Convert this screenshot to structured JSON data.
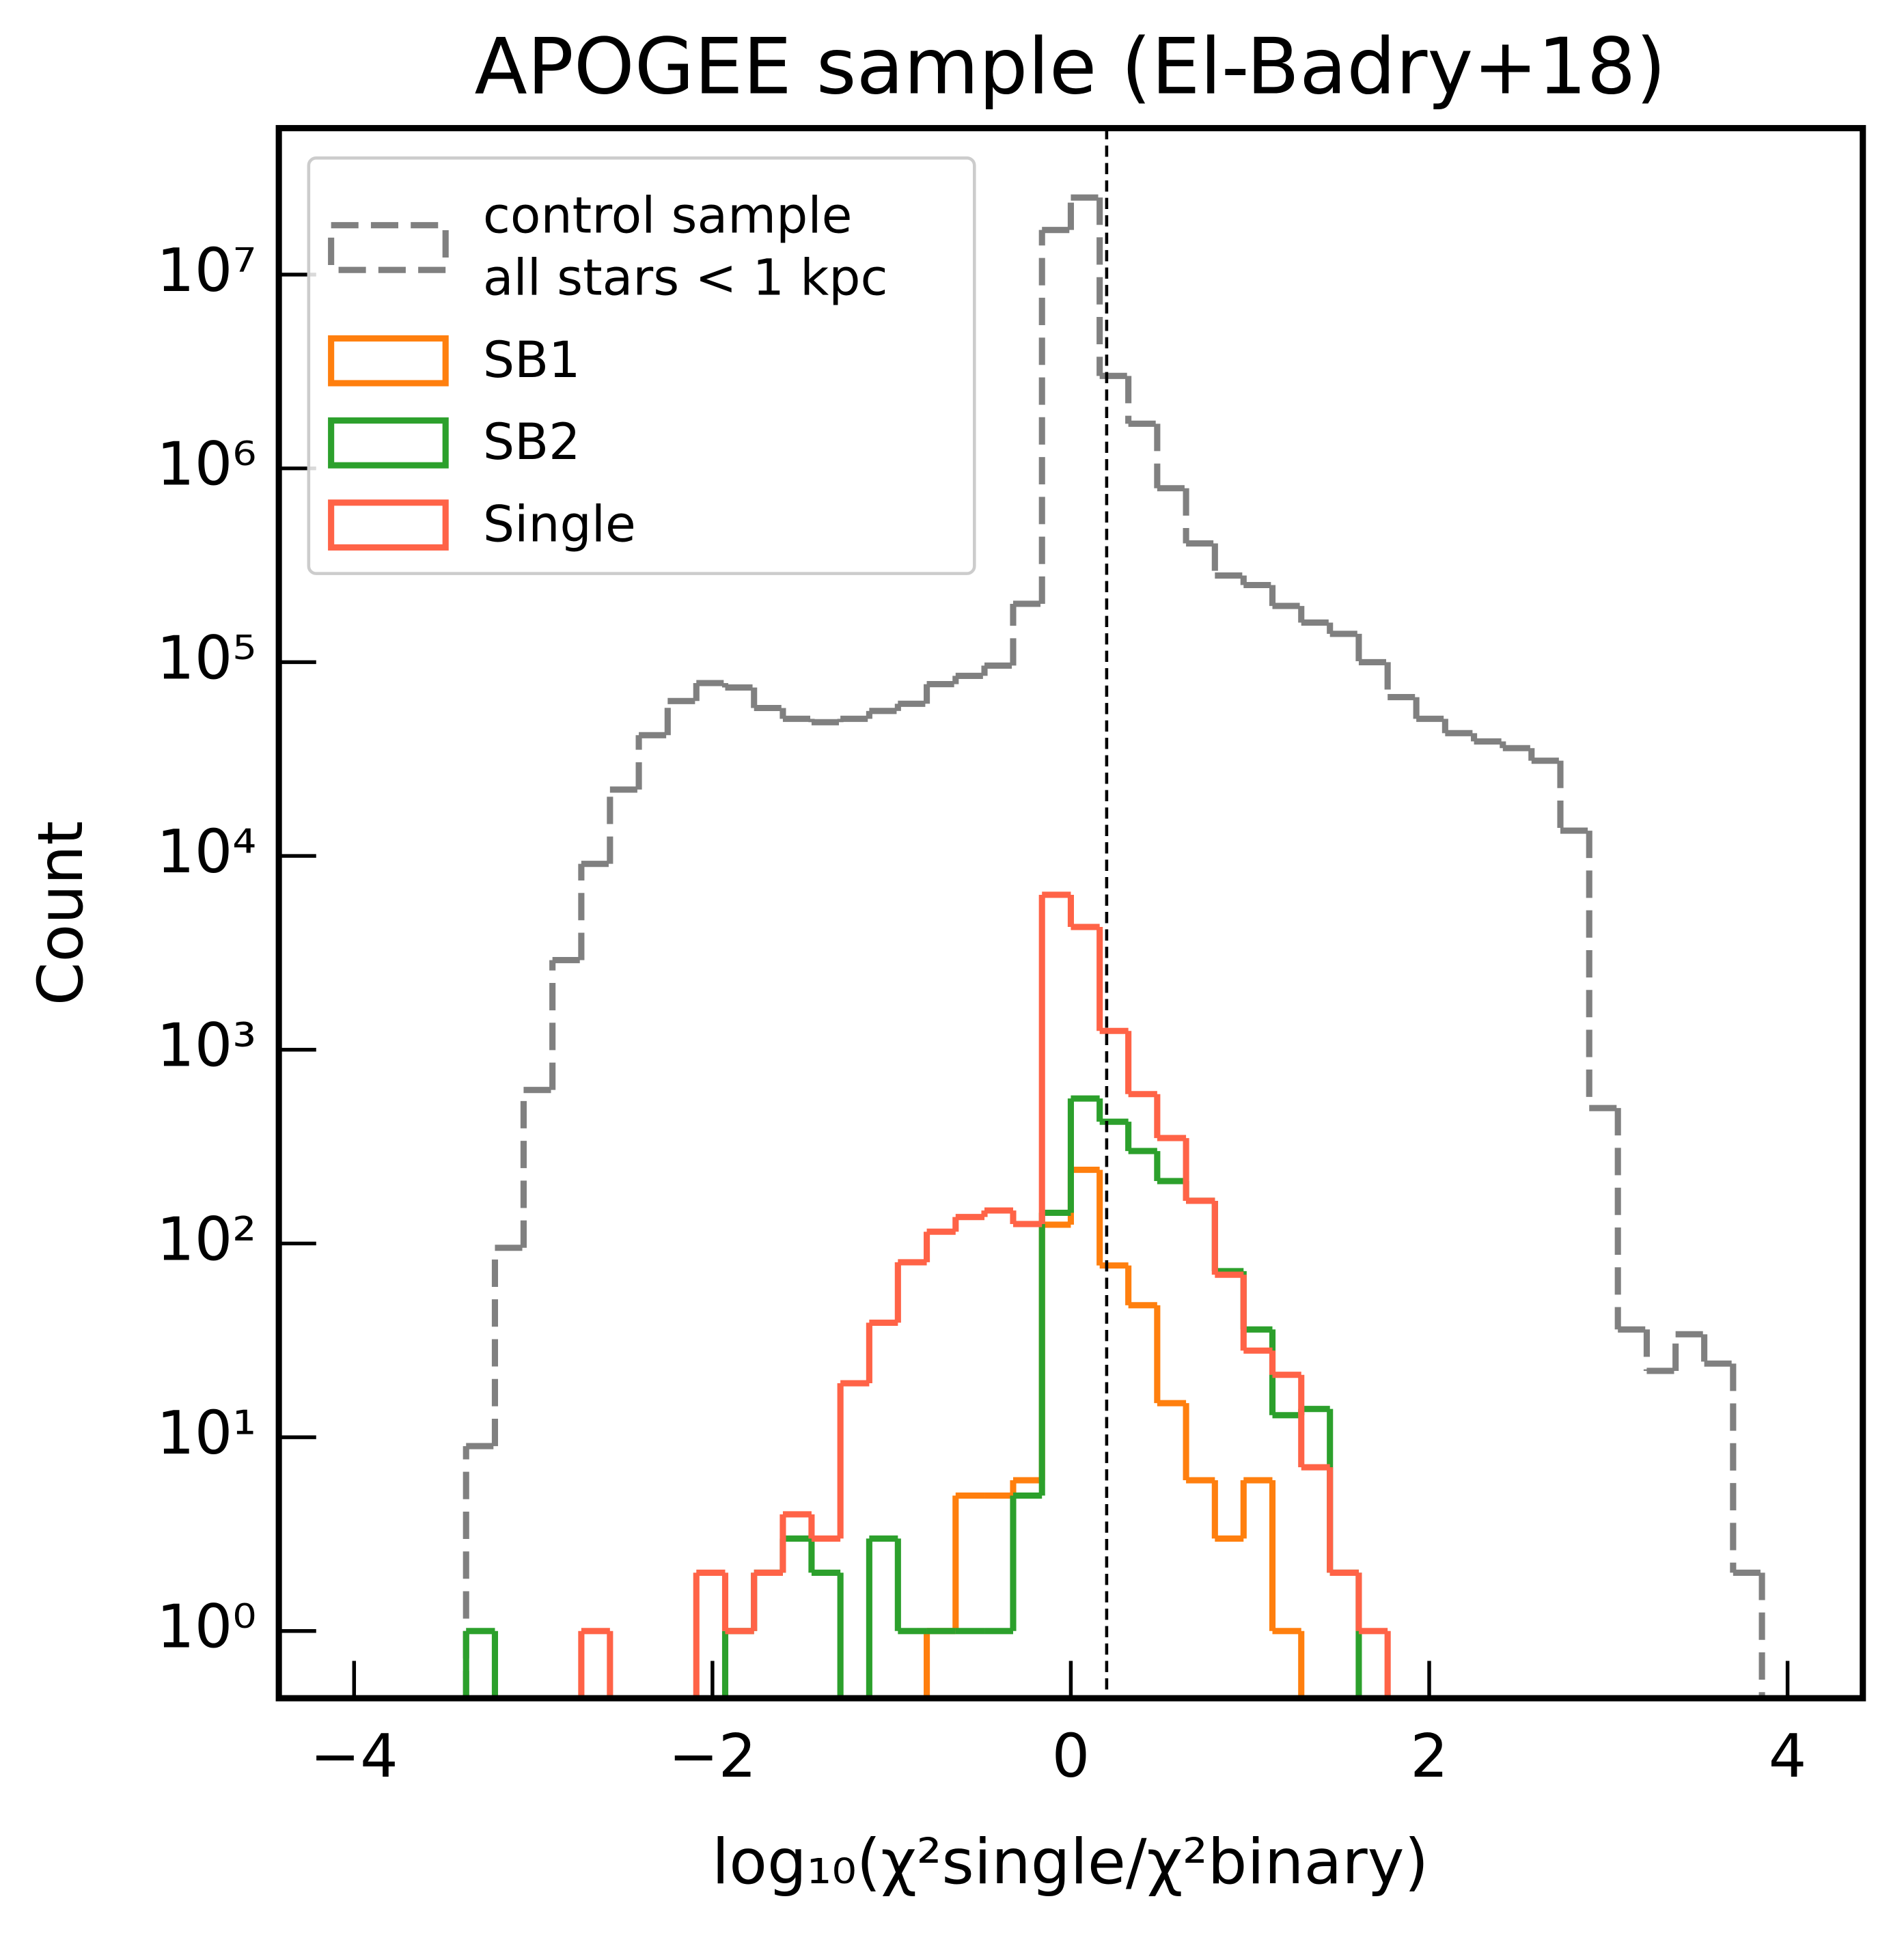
{
  "chart_data": {
    "type": "histogram",
    "title": "APOGEE sample (El-Badry+18)",
    "xlabel": "log₁₀(χ²single/χ²binary)",
    "ylabel": "Count",
    "bins": [
      -3.375,
      -3.214,
      -3.054,
      -2.893,
      -2.732,
      -2.572,
      -2.411,
      -2.25,
      -2.09,
      -1.929,
      -1.768,
      -1.607,
      -1.447,
      -1.286,
      -1.125,
      -0.965,
      -0.804,
      -0.643,
      -0.482,
      -0.322,
      -0.161,
      0.0,
      0.161,
      0.321,
      0.482,
      0.643,
      0.804,
      0.964,
      1.125,
      1.286,
      1.446,
      1.607,
      1.768,
      1.928,
      2.089,
      2.25,
      2.411,
      2.571,
      2.732,
      2.893,
      3.053,
      3.214,
      3.375,
      3.535,
      3.696,
      3.857
    ],
    "series": [
      {
        "name": "control sample\nall stars < 1 kpc",
        "color": "#808080",
        "dashed": true,
        "values": [
          9,
          95,
          620,
          2900,
          9100,
          22000,
          42000,
          63000,
          78000,
          74000,
          58000,
          51000,
          49000,
          51000,
          56000,
          61000,
          77000,
          85000,
          96000,
          200000,
          17000000,
          25000000,
          3000000,
          1700000,
          790000,
          410000,
          280000,
          250000,
          195000,
          160000,
          140000,
          100000,
          66000,
          51000,
          43000,
          39000,
          36000,
          31000,
          13500,
          500,
          36,
          22,
          34,
          24,
          2
        ]
      },
      {
        "name": "SB1",
        "color": "#ff7f0e",
        "values": [
          0,
          0,
          0,
          0,
          0,
          0,
          0,
          0,
          0,
          0,
          0,
          0,
          0,
          0,
          0,
          0,
          1,
          5,
          5,
          6,
          125,
          240,
          77,
          48,
          15,
          6,
          3,
          6,
          1,
          0,
          0,
          0,
          0,
          0,
          0,
          0,
          0,
          0,
          0,
          0,
          0,
          0,
          0,
          0,
          0
        ]
      },
      {
        "name": "SB2",
        "color": "#2ca02c",
        "values": [
          1,
          0,
          0,
          0,
          0,
          0,
          0,
          0,
          0,
          1,
          2,
          3,
          2,
          0,
          3,
          1,
          1,
          1,
          1,
          5,
          144,
          560,
          425,
          300,
          210,
          166,
          72,
          36,
          13,
          14,
          2,
          0,
          0,
          0,
          0,
          0,
          0,
          0,
          0,
          0,
          0,
          0,
          0,
          0,
          0
        ]
      },
      {
        "name": "Single",
        "color": "#ff6347",
        "values": [
          0,
          0,
          0,
          0,
          1,
          0,
          0,
          0,
          2,
          1,
          2,
          4,
          3,
          19,
          39,
          80,
          115,
          137,
          148,
          126,
          6300,
          4300,
          1250,
          590,
          350,
          166,
          69,
          28,
          21,
          7,
          2,
          1,
          0,
          0,
          0,
          0,
          0,
          0,
          0,
          0,
          0,
          0,
          0,
          0,
          0
        ]
      }
    ],
    "vline": 0.2,
    "xlim": [
      -4.42,
      4.42
    ],
    "xticks": [
      {
        "value": -4,
        "label": "−4"
      },
      {
        "value": -2,
        "label": "−2"
      },
      0,
      2,
      4
    ],
    "ylim": [
      0.45,
      57000000
    ],
    "log_y": true,
    "yticks": [
      {
        "value": 1,
        "label": "10⁰"
      },
      {
        "value": 10,
        "label": "10¹"
      },
      {
        "value": 100,
        "label": "10²"
      },
      {
        "value": 1000,
        "label": "10³"
      },
      {
        "value": 10000,
        "label": "10⁴"
      },
      {
        "value": 100000,
        "label": "10⁵"
      },
      {
        "value": 1000000,
        "label": "10⁶"
      },
      {
        "value": 10000000,
        "label": "10⁷"
      }
    ],
    "legend": "upper left"
  }
}
